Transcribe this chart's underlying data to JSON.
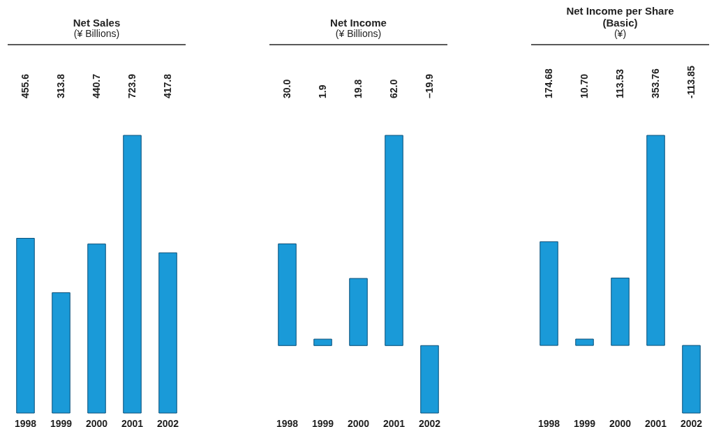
{
  "chart_data": [
    {
      "type": "bar",
      "title": "Net Sales",
      "subtitle": "(¥ Billions)",
      "categories": [
        "1998",
        "1999",
        "2000",
        "2001",
        "2002"
      ],
      "values": [
        455.6,
        313.8,
        440.7,
        723.9,
        417.8
      ],
      "value_labels": [
        "455.6",
        "313.8",
        "440.7",
        "723.9",
        "417.8"
      ],
      "color": "#1a9ad8",
      "tick_labels": "x",
      "grid": false
    },
    {
      "type": "bar",
      "title": "Net Income",
      "subtitle": "(¥ Billions)",
      "categories": [
        "1998",
        "1999",
        "2000",
        "2001",
        "2002"
      ],
      "values": [
        30.0,
        1.9,
        19.8,
        62.0,
        -19.9
      ],
      "value_labels": [
        "30.0",
        "1.9",
        "19.8",
        "62.0",
        "–19.9"
      ],
      "color": "#1a9ad8",
      "tick_labels": "x",
      "grid": false
    },
    {
      "type": "bar",
      "title": "Net Income per Share\n(Basic)",
      "subtitle": "(¥)",
      "categories": [
        "1998",
        "1999",
        "2000",
        "2001",
        "2002"
      ],
      "values": [
        174.68,
        10.7,
        113.53,
        353.76,
        -113.85
      ],
      "value_labels": [
        "174.68",
        "10.70",
        "113.53",
        "353.76",
        "-113.85"
      ],
      "color": "#1a9ad8",
      "tick_labels": "x",
      "grid": false
    }
  ]
}
